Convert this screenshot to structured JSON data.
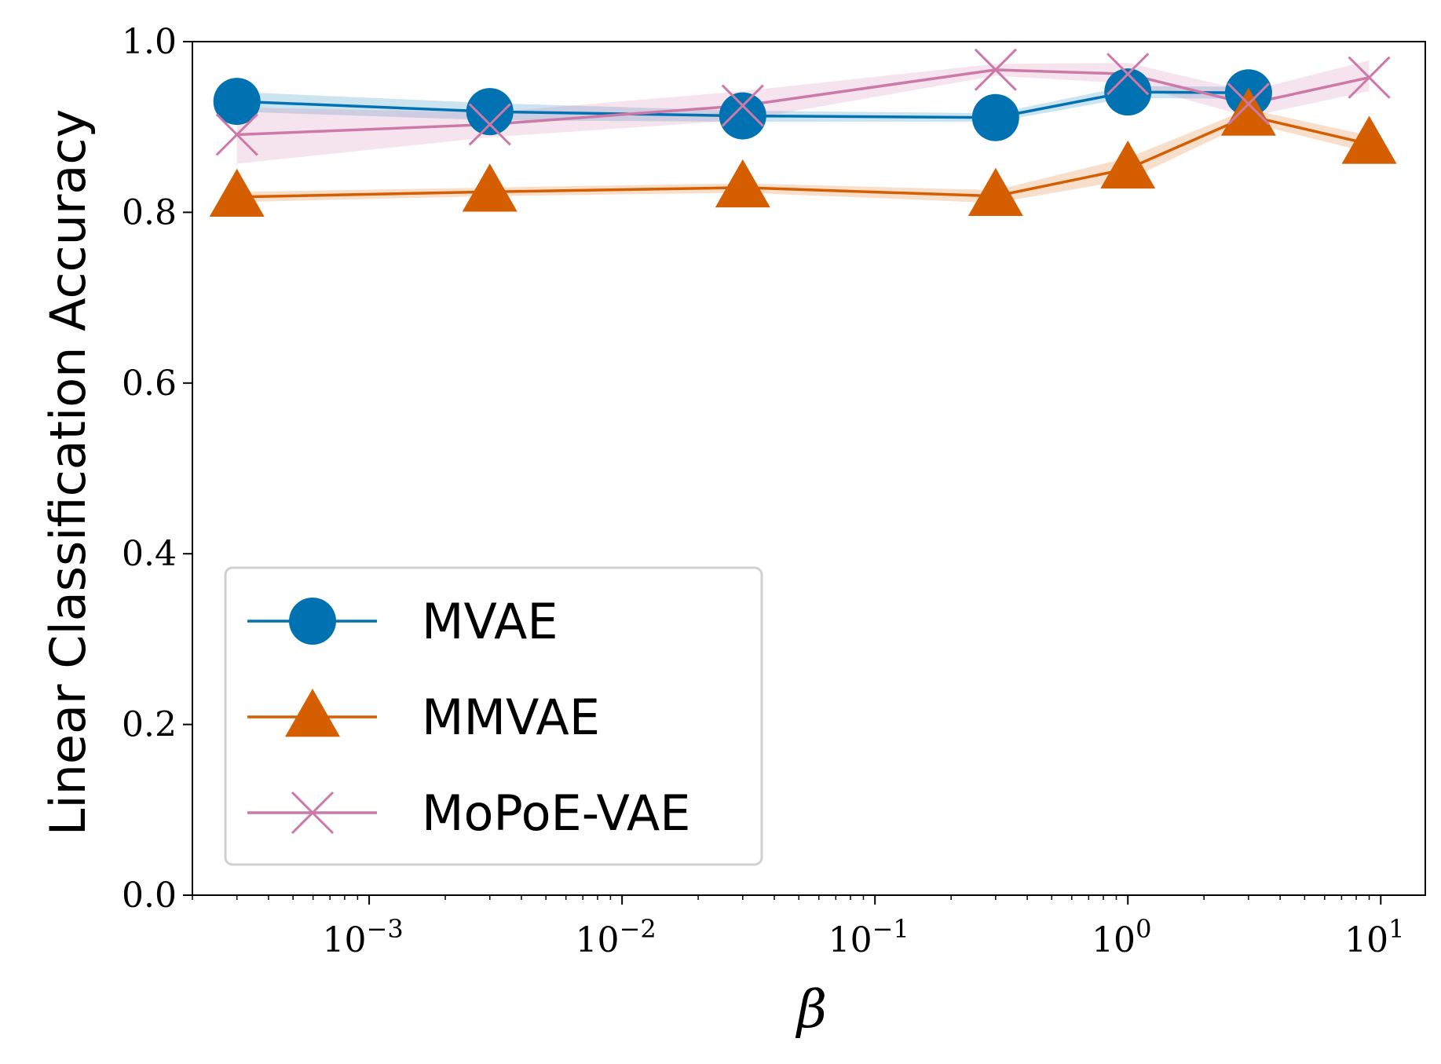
{
  "chart_data": {
    "type": "line",
    "title": "",
    "xlabel": "β",
    "ylabel": "Linear Classification Accuracy",
    "xscale": "log",
    "xlim": [
      0.0002,
      15
    ],
    "ylim": [
      0.0,
      1.0
    ],
    "x_ticks": [
      {
        "value": 0.001,
        "base": "10",
        "exp": "−3"
      },
      {
        "value": 0.01,
        "base": "10",
        "exp": "−2"
      },
      {
        "value": 0.1,
        "base": "10",
        "exp": "−1"
      },
      {
        "value": 1,
        "base": "10",
        "exp": "0"
      },
      {
        "value": 10,
        "base": "10",
        "exp": "1"
      }
    ],
    "y_ticks": [
      "0.0",
      "0.2",
      "0.4",
      "0.6",
      "0.8",
      "1.0"
    ],
    "legend_position": "lower-left",
    "series": [
      {
        "name": "MVAE",
        "color": "#0072B2",
        "marker": "circle",
        "x": [
          0.0003,
          0.003,
          0.03,
          0.3,
          1,
          3,
          9
        ],
        "values": [
          0.93,
          0.918,
          0.913,
          0.911,
          0.941,
          0.94,
          null
        ],
        "band_low": [
          0.918,
          0.908,
          0.906,
          0.906,
          0.934,
          0.933,
          null
        ],
        "band_high": [
          0.941,
          0.928,
          0.919,
          0.916,
          0.948,
          0.947,
          null
        ]
      },
      {
        "name": "MMVAE",
        "color": "#D55E00",
        "marker": "triangle",
        "x": [
          0.0003,
          0.003,
          0.03,
          0.3,
          1,
          3,
          9
        ],
        "values": [
          0.818,
          0.824,
          0.829,
          0.819,
          0.851,
          0.913,
          0.88
        ],
        "band_low": [
          0.812,
          0.819,
          0.823,
          0.811,
          0.838,
          0.905,
          0.87
        ],
        "band_high": [
          0.824,
          0.829,
          0.834,
          0.826,
          0.864,
          0.921,
          0.89
        ]
      },
      {
        "name": "MoPoE-VAE",
        "color": "#CC79A7",
        "marker": "x",
        "x": [
          0.0003,
          0.003,
          0.03,
          0.3,
          1,
          3,
          9
        ],
        "values": [
          0.891,
          0.903,
          0.925,
          0.967,
          0.962,
          0.927,
          0.958
        ],
        "band_low": [
          0.857,
          0.888,
          0.908,
          0.96,
          0.951,
          0.912,
          0.942
        ],
        "band_high": [
          0.923,
          0.917,
          0.942,
          0.974,
          0.975,
          0.942,
          0.978
        ]
      }
    ]
  }
}
